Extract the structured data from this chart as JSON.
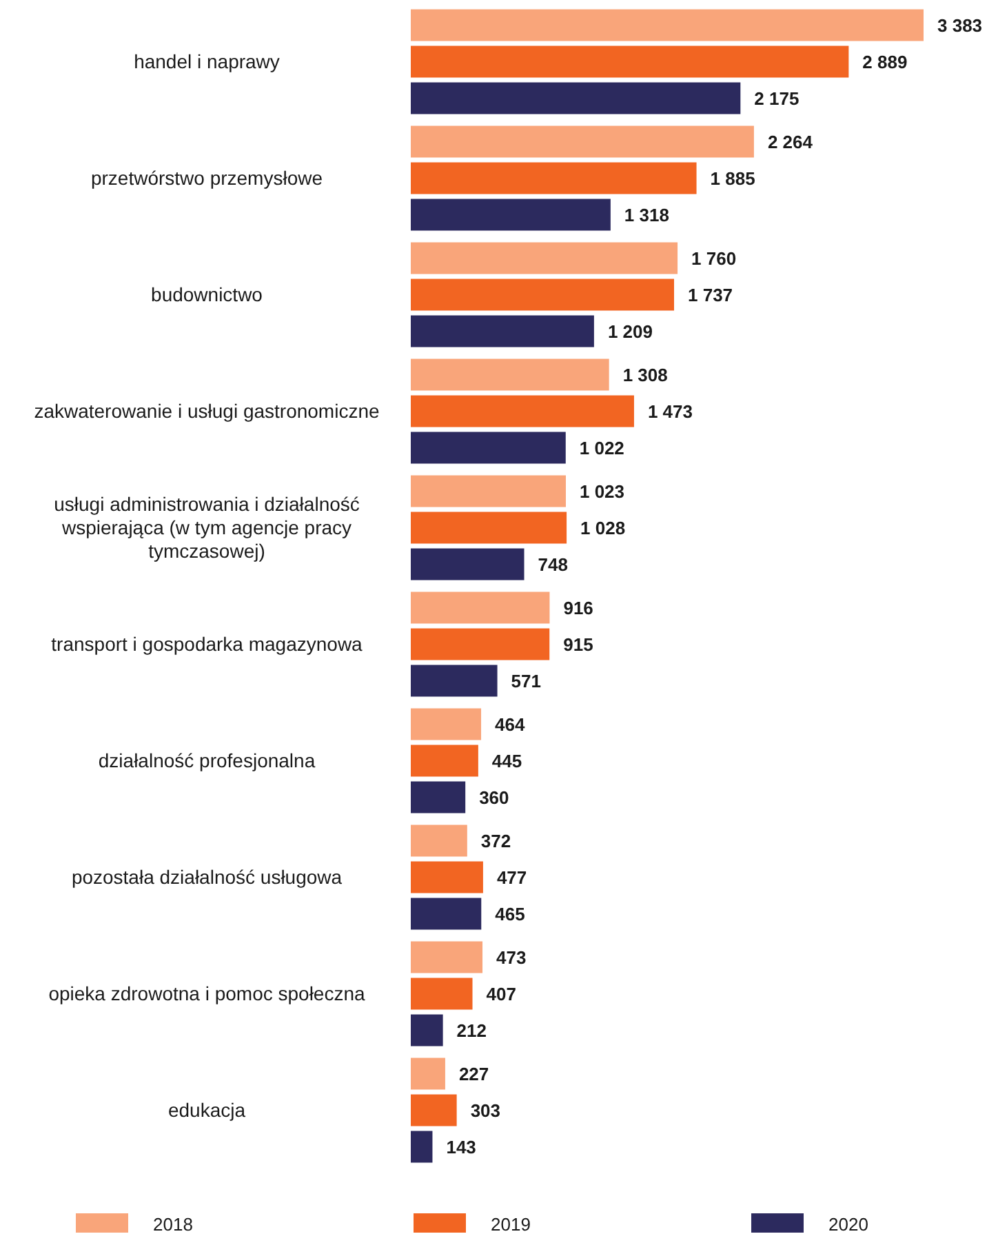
{
  "chart_data": {
    "type": "bar",
    "orientation": "horizontal",
    "legend": "bottom",
    "categories": [
      "handel i naprawy",
      "przetwórstwo przemysłowe",
      "budownictwo",
      "zakwaterowanie i usługi gastronomiczne",
      "usługi administrowania i działalność wspierająca (w tym agencje pracy tymczasowej)",
      "transport i gospodarka magazynowa",
      "działalność profesjonalna",
      "pozostała działalność usługowa",
      "opieka zdrowotna i pomoc społeczna",
      "edukacja"
    ],
    "series": [
      {
        "name": "2018",
        "color": "#f9a57a",
        "values": [
          3383,
          2264,
          1760,
          1308,
          1023,
          916,
          464,
          372,
          473,
          227
        ],
        "value_labels": [
          "3 383",
          "2 264",
          "1 760",
          "1 308",
          "1 023",
          "916",
          "464",
          "372",
          "473",
          "227"
        ]
      },
      {
        "name": "2019",
        "color": "#f26522",
        "values": [
          2889,
          1885,
          1737,
          1473,
          1028,
          915,
          445,
          477,
          407,
          303
        ],
        "value_labels": [
          "2 889",
          "1 885",
          "1 737",
          "1 473",
          "1 028",
          "915",
          "445",
          "477",
          "407",
          "303"
        ]
      },
      {
        "name": "2020",
        "color": "#2c2a5e",
        "values": [
          2175,
          1318,
          1209,
          1022,
          748,
          571,
          360,
          465,
          212,
          143
        ],
        "value_labels": [
          "2 175",
          "1 318",
          "1 209",
          "1 022",
          "748",
          "571",
          "360",
          "465",
          "212",
          "143"
        ]
      }
    ]
  }
}
